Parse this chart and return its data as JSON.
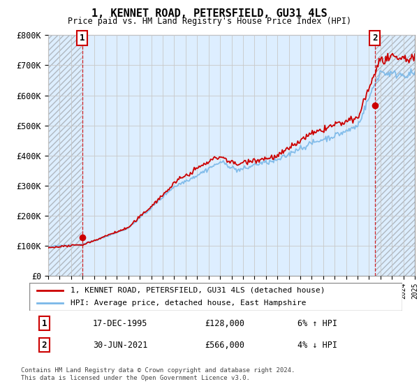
{
  "title": "1, KENNET ROAD, PETERSFIELD, GU31 4LS",
  "subtitle": "Price paid vs. HM Land Registry's House Price Index (HPI)",
  "ylim": [
    0,
    800000
  ],
  "yticks": [
    0,
    100000,
    200000,
    300000,
    400000,
    500000,
    600000,
    700000,
    800000
  ],
  "ytick_labels": [
    "£0",
    "£100K",
    "£200K",
    "£300K",
    "£400K",
    "£500K",
    "£600K",
    "£700K",
    "£800K"
  ],
  "sale1_x": 1995.96,
  "sale1_y": 128000,
  "sale2_x": 2021.5,
  "sale2_y": 566000,
  "hpi_color": "#7ab8e8",
  "price_color": "#cc0000",
  "marker_color": "#cc0000",
  "grid_color": "#c8c8c8",
  "plot_bg_color": "#ddeeff",
  "background_color": "#ffffff",
  "legend_label_price": "1, KENNET ROAD, PETERSFIELD, GU31 4LS (detached house)",
  "legend_label_hpi": "HPI: Average price, detached house, East Hampshire",
  "annotation1_date": "17-DEC-1995",
  "annotation1_price": "£128,000",
  "annotation1_hpi": "6% ↑ HPI",
  "annotation2_date": "30-JUN-2021",
  "annotation2_price": "£566,000",
  "annotation2_hpi": "4% ↓ HPI",
  "footnote": "Contains HM Land Registry data © Crown copyright and database right 2024.\nThis data is licensed under the Open Government Licence v3.0.",
  "xmin": 1993,
  "xmax": 2025
}
